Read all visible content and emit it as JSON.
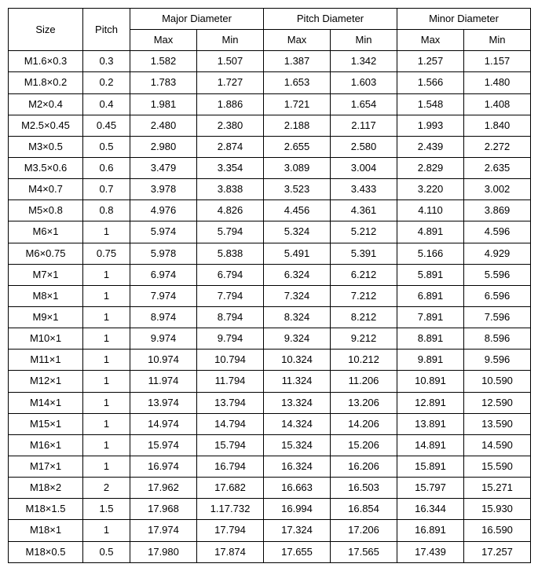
{
  "headers": {
    "size": "Size",
    "pitch": "Pitch",
    "major": "Major Diameter",
    "pitchd": "Pitch Diameter",
    "minor": "Minor Diameter",
    "max": "Max",
    "min": "Min"
  },
  "rows": [
    {
      "size": "M1.6×0.3",
      "pitch": "0.3",
      "major_max": "1.582",
      "major_min": "1.507",
      "pitch_max": "1.387",
      "pitch_min": "1.342",
      "minor_max": "1.257",
      "minor_min": "1.157"
    },
    {
      "size": "M1.8×0.2",
      "pitch": "0.2",
      "major_max": "1.783",
      "major_min": "1.727",
      "pitch_max": "1.653",
      "pitch_min": "1.603",
      "minor_max": "1.566",
      "minor_min": "1.480"
    },
    {
      "size": "M2×0.4",
      "pitch": "0.4",
      "major_max": "1.981",
      "major_min": "1.886",
      "pitch_max": "1.721",
      "pitch_min": "1.654",
      "minor_max": "1.548",
      "minor_min": "1.408"
    },
    {
      "size": "M2.5×0.45",
      "pitch": "0.45",
      "major_max": "2.480",
      "major_min": "2.380",
      "pitch_max": "2.188",
      "pitch_min": "2.117",
      "minor_max": "1.993",
      "minor_min": "1.840"
    },
    {
      "size": "M3×0.5",
      "pitch": "0.5",
      "major_max": "2.980",
      "major_min": "2.874",
      "pitch_max": "2.655",
      "pitch_min": "2.580",
      "minor_max": "2.439",
      "minor_min": "2.272"
    },
    {
      "size": "M3.5×0.6",
      "pitch": "0.6",
      "major_max": "3.479",
      "major_min": "3.354",
      "pitch_max": "3.089",
      "pitch_min": "3.004",
      "minor_max": "2.829",
      "minor_min": "2.635"
    },
    {
      "size": "M4×0.7",
      "pitch": "0.7",
      "major_max": "3.978",
      "major_min": "3.838",
      "pitch_max": "3.523",
      "pitch_min": "3.433",
      "minor_max": "3.220",
      "minor_min": "3.002"
    },
    {
      "size": "M5×0.8",
      "pitch": "0.8",
      "major_max": "4.976",
      "major_min": "4.826",
      "pitch_max": "4.456",
      "pitch_min": "4.361",
      "minor_max": "4.110",
      "minor_min": "3.869"
    },
    {
      "size": "M6×1",
      "pitch": "1",
      "major_max": "5.974",
      "major_min": "5.794",
      "pitch_max": "5.324",
      "pitch_min": "5.212",
      "minor_max": "4.891",
      "minor_min": "4.596"
    },
    {
      "size": "M6×0.75",
      "pitch": "0.75",
      "major_max": "5.978",
      "major_min": "5.838",
      "pitch_max": "5.491",
      "pitch_min": "5.391",
      "minor_max": "5.166",
      "minor_min": "4.929"
    },
    {
      "size": "M7×1",
      "pitch": "1",
      "major_max": "6.974",
      "major_min": "6.794",
      "pitch_max": "6.324",
      "pitch_min": "6.212",
      "minor_max": "5.891",
      "minor_min": "5.596"
    },
    {
      "size": "M8×1",
      "pitch": "1",
      "major_max": "7.974",
      "major_min": "7.794",
      "pitch_max": "7.324",
      "pitch_min": "7.212",
      "minor_max": "6.891",
      "minor_min": "6.596"
    },
    {
      "size": "M9×1",
      "pitch": "1",
      "major_max": "8.974",
      "major_min": "8.794",
      "pitch_max": "8.324",
      "pitch_min": "8.212",
      "minor_max": "7.891",
      "minor_min": "7.596"
    },
    {
      "size": "M10×1",
      "pitch": "1",
      "major_max": "9.974",
      "major_min": "9.794",
      "pitch_max": "9.324",
      "pitch_min": "9.212",
      "minor_max": "8.891",
      "minor_min": "8.596"
    },
    {
      "size": "M11×1",
      "pitch": "1",
      "major_max": "10.974",
      "major_min": "10.794",
      "pitch_max": "10.324",
      "pitch_min": "10.212",
      "minor_max": "9.891",
      "minor_min": "9.596"
    },
    {
      "size": "M12×1",
      "pitch": "1",
      "major_max": "11.974",
      "major_min": "11.794",
      "pitch_max": "11.324",
      "pitch_min": "11.206",
      "minor_max": "10.891",
      "minor_min": "10.590"
    },
    {
      "size": "M14×1",
      "pitch": "1",
      "major_max": "13.974",
      "major_min": "13.794",
      "pitch_max": "13.324",
      "pitch_min": "13.206",
      "minor_max": "12.891",
      "minor_min": "12.590"
    },
    {
      "size": "M15×1",
      "pitch": "1",
      "major_max": "14.974",
      "major_min": "14.794",
      "pitch_max": "14.324",
      "pitch_min": "14.206",
      "minor_max": "13.891",
      "minor_min": "13.590"
    },
    {
      "size": "M16×1",
      "pitch": "1",
      "major_max": "15.974",
      "major_min": "15.794",
      "pitch_max": "15.324",
      "pitch_min": "15.206",
      "minor_max": "14.891",
      "minor_min": "14.590"
    },
    {
      "size": "M17×1",
      "pitch": "1",
      "major_max": "16.974",
      "major_min": "16.794",
      "pitch_max": "16.324",
      "pitch_min": "16.206",
      "minor_max": "15.891",
      "minor_min": "15.590"
    },
    {
      "size": "M18×2",
      "pitch": "2",
      "major_max": "17.962",
      "major_min": "17.682",
      "pitch_max": "16.663",
      "pitch_min": "16.503",
      "minor_max": "15.797",
      "minor_min": "15.271"
    },
    {
      "size": "M18×1.5",
      "pitch": "1.5",
      "major_max": "17.968",
      "major_min": "1.17.732",
      "pitch_max": "16.994",
      "pitch_min": "16.854",
      "minor_max": "16.344",
      "minor_min": "15.930"
    },
    {
      "size": "M18×1",
      "pitch": "1",
      "major_max": "17.974",
      "major_min": "17.794",
      "pitch_max": "17.324",
      "pitch_min": "17.206",
      "minor_max": "16.891",
      "minor_min": "16.590"
    },
    {
      "size": "M18×0.5",
      "pitch": "0.5",
      "major_max": "17.980",
      "major_min": "17.874",
      "pitch_max": "17.655",
      "pitch_min": "17.565",
      "minor_max": "17.439",
      "minor_min": "17.257"
    }
  ]
}
